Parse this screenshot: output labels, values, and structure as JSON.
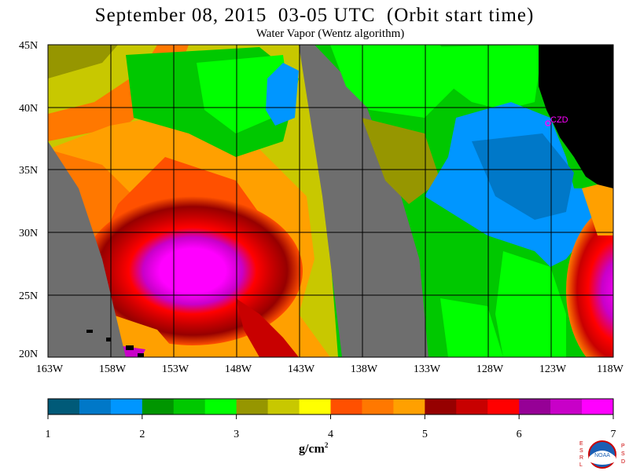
{
  "title": "September 08, 2015  03-05 UTC  (Orbit start time)",
  "subtitle": "Water Vapor (Wentz algorithm)",
  "map": {
    "lat_labels": [
      "45N",
      "40N",
      "35N",
      "30N",
      "25N",
      "20N"
    ],
    "lon_labels": [
      "163W",
      "158W",
      "153W",
      "148W",
      "143W",
      "138W",
      "133W",
      "128W",
      "123W",
      "118W"
    ],
    "station_label": "CZD",
    "station_color": "#ff00ff",
    "land_color": "#000000",
    "nodata_color": "#6e6e6e"
  },
  "colorbar": {
    "ticks": [
      "1",
      "2",
      "3",
      "4",
      "5",
      "6",
      "7"
    ],
    "colors": [
      "#005a78",
      "#0078c8",
      "#0096ff",
      "#009600",
      "#00c800",
      "#00ff00",
      "#969600",
      "#c8c800",
      "#ffff00",
      "#ff5000",
      "#ff7800",
      "#ffa000",
      "#960000",
      "#c80000",
      "#ff0000",
      "#960096",
      "#c800c8",
      "#ff00ff"
    ],
    "units": "g/cm",
    "units_sup": "2"
  },
  "logo": {
    "left_letters": [
      "E",
      "S",
      "R",
      "L"
    ],
    "right_letters": [
      "P",
      "S",
      "D"
    ],
    "center_text": "NOAA"
  }
}
